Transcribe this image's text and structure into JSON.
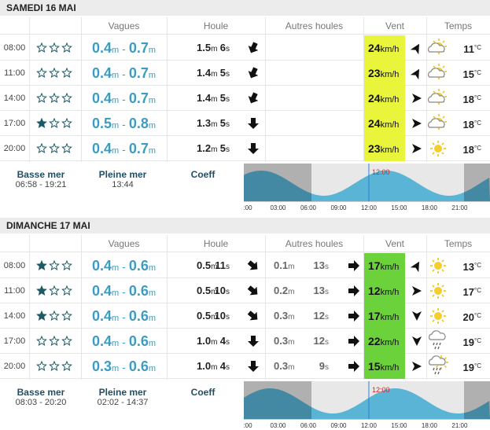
{
  "units": {
    "height": "m",
    "period": "s",
    "speed": "km/h",
    "temp": "°C",
    "range_sep": "-"
  },
  "days": [
    {
      "title": "SAMEDI 16 MAI",
      "headers": [
        "Vagues",
        "Houle",
        "Autres houles",
        "Vent",
        "Temps"
      ],
      "wind_color": "#e8f53a",
      "rows": [
        {
          "time": "08:00",
          "stars": 0,
          "wave_min": "0.4",
          "wave_max": "0.7",
          "swell_height": "1.5",
          "swell_period": "6",
          "other_height": null,
          "other_period": null,
          "wind": "24",
          "temp": "11"
        },
        {
          "time": "11:00",
          "stars": 0,
          "wave_min": "0.4",
          "wave_max": "0.7",
          "swell_height": "1.4",
          "swell_period": "5",
          "other_height": null,
          "other_period": null,
          "wind": "23",
          "temp": "15"
        },
        {
          "time": "14:00",
          "stars": 0,
          "wave_min": "0.4",
          "wave_max": "0.7",
          "swell_height": "1.4",
          "swell_period": "5",
          "other_height": null,
          "other_period": null,
          "wind": "24",
          "temp": "18"
        },
        {
          "time": "17:00",
          "stars": 1,
          "wave_min": "0.5",
          "wave_max": "0.8",
          "swell_height": "1.3",
          "swell_period": "5",
          "other_height": null,
          "other_period": null,
          "wind": "24",
          "temp": "18"
        },
        {
          "time": "20:00",
          "stars": 0,
          "wave_min": "0.4",
          "wave_max": "0.7",
          "swell_height": "1.2",
          "swell_period": "5",
          "other_height": null,
          "other_period": null,
          "wind": "23",
          "temp": "18"
        }
      ],
      "tide": {
        "low_label": "Basse mer",
        "low": "06:58 - 19:21",
        "high_label": "Pleine mer",
        "high": "13:44",
        "coeff_label": "Coeff",
        "now": "12:00",
        "axis": [
          ":00",
          "03:00",
          "06:00",
          "09:00",
          "12:00",
          "15:00",
          "18:00",
          "21:00"
        ]
      }
    },
    {
      "title": "DIMANCHE 17 MAI",
      "headers": [
        "Vagues",
        "Houle",
        "Autres houles",
        "Vent",
        "Temps"
      ],
      "wind_color": "#6bd23b",
      "rows": [
        {
          "time": "08:00",
          "stars": 1,
          "wave_min": "0.4",
          "wave_max": "0.6",
          "swell_height": "0.5",
          "swell_period": "11",
          "other_height": "0.1",
          "other_period": "13",
          "wind": "17",
          "temp": "13"
        },
        {
          "time": "11:00",
          "stars": 1,
          "wave_min": "0.4",
          "wave_max": "0.6",
          "swell_height": "0.5",
          "swell_period": "10",
          "other_height": "0.2",
          "other_period": "13",
          "wind": "12",
          "temp": "17"
        },
        {
          "time": "14:00",
          "stars": 1,
          "wave_min": "0.4",
          "wave_max": "0.6",
          "swell_height": "0.5",
          "swell_period": "10",
          "other_height": "0.3",
          "other_period": "12",
          "wind": "17",
          "temp": "20"
        },
        {
          "time": "17:00",
          "stars": 0,
          "wave_min": "0.4",
          "wave_max": "0.6",
          "swell_height": "1.0",
          "swell_period": "4",
          "other_height": "0.3",
          "other_period": "12",
          "wind": "22",
          "temp": "19"
        },
        {
          "time": "20:00",
          "stars": 0,
          "wave_min": "0.3",
          "wave_max": "0.6",
          "swell_height": "1.0",
          "swell_period": "4",
          "other_height": "0.3",
          "other_period": "9",
          "wind": "15",
          "temp": "19"
        }
      ],
      "tide": {
        "low_label": "Basse mer",
        "low": "08:03 - 20:20",
        "high_label": "Pleine mer",
        "high": "02:02 - 14:37",
        "coeff_label": "Coeff",
        "now": "12:00",
        "axis": [
          ":00",
          "03:00",
          "06:00",
          "09:00",
          "12:00",
          "15:00",
          "18:00",
          "21:00"
        ]
      }
    }
  ]
}
